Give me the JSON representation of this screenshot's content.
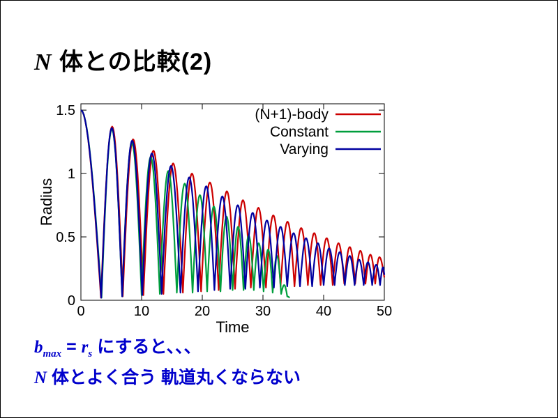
{
  "title": {
    "math": "N",
    "rest": " 体との比較(2)"
  },
  "chart_data": {
    "type": "line",
    "title": "",
    "xlabel": "Time",
    "ylabel": "Radius",
    "xlim": [
      0,
      50
    ],
    "ylim": [
      0,
      1.55
    ],
    "xticks": [
      0,
      10,
      20,
      30,
      40,
      50
    ],
    "yticks": [
      0,
      0.5,
      1,
      1.5
    ],
    "grid": false,
    "legend_position": "top-right-inside",
    "series": [
      {
        "name": "(N+1)-body",
        "color": "#cc0000",
        "extrema": [
          [
            0,
            1.5
          ],
          [
            3.3,
            0.02
          ],
          [
            5.15,
            1.37
          ],
          [
            6.9,
            0.03
          ],
          [
            8.6,
            1.27
          ],
          [
            10.3,
            0.04
          ],
          [
            11.95,
            1.18
          ],
          [
            13.6,
            0.05
          ],
          [
            15.2,
            1.08
          ],
          [
            16.8,
            0.06
          ],
          [
            18.3,
            1.0
          ],
          [
            19.8,
            0.07
          ],
          [
            21.25,
            0.93
          ],
          [
            22.7,
            0.08
          ],
          [
            24.05,
            0.86
          ],
          [
            25.4,
            0.09
          ],
          [
            26.7,
            0.79
          ],
          [
            28.0,
            0.1
          ],
          [
            29.25,
            0.73
          ],
          [
            30.5,
            0.1
          ],
          [
            31.7,
            0.67
          ],
          [
            32.9,
            0.11
          ],
          [
            34.05,
            0.62
          ],
          [
            35.2,
            0.11
          ],
          [
            36.3,
            0.57
          ],
          [
            37.4,
            0.12
          ],
          [
            38.45,
            0.53
          ],
          [
            39.5,
            0.12
          ],
          [
            40.5,
            0.49
          ],
          [
            41.5,
            0.12
          ],
          [
            42.45,
            0.45
          ],
          [
            43.4,
            0.13
          ],
          [
            44.3,
            0.42
          ],
          [
            45.2,
            0.13
          ],
          [
            46.05,
            0.39
          ],
          [
            46.9,
            0.13
          ],
          [
            47.7,
            0.36
          ],
          [
            48.5,
            0.13
          ],
          [
            49.2,
            0.34
          ],
          [
            50,
            0.18
          ]
        ]
      },
      {
        "name": "Constant",
        "color": "#009e3c",
        "extrema": [
          [
            0,
            1.5
          ],
          [
            3.4,
            0.02
          ],
          [
            5.1,
            1.35
          ],
          [
            6.8,
            0.03
          ],
          [
            8.4,
            1.24
          ],
          [
            10.0,
            0.04
          ],
          [
            11.5,
            1.13
          ],
          [
            13.0,
            0.05
          ],
          [
            14.4,
            1.02
          ],
          [
            15.8,
            0.06
          ],
          [
            17.1,
            0.92
          ],
          [
            18.4,
            0.06
          ],
          [
            19.6,
            0.83
          ],
          [
            20.8,
            0.07
          ],
          [
            21.9,
            0.74
          ],
          [
            23.0,
            0.07
          ],
          [
            24.0,
            0.66
          ],
          [
            25.0,
            0.08
          ],
          [
            25.9,
            0.58
          ],
          [
            26.8,
            0.08
          ],
          [
            27.65,
            0.51
          ],
          [
            28.5,
            0.08
          ],
          [
            29.3,
            0.45
          ],
          [
            30.1,
            0.07
          ],
          [
            30.85,
            0.4
          ],
          [
            31.6,
            0.06
          ],
          [
            32.3,
            0.35
          ],
          [
            33.0,
            0.05
          ],
          [
            33.5,
            0.12
          ],
          [
            34.0,
            0.03
          ],
          [
            34.4,
            0.02
          ]
        ]
      },
      {
        "name": "Varying",
        "color": "#0000a0",
        "extrema": [
          [
            0,
            1.5
          ],
          [
            3.35,
            0.02
          ],
          [
            5.1,
            1.36
          ],
          [
            6.8,
            0.03
          ],
          [
            8.45,
            1.26
          ],
          [
            10.1,
            0.04
          ],
          [
            11.7,
            1.16
          ],
          [
            13.3,
            0.05
          ],
          [
            14.85,
            1.06
          ],
          [
            16.4,
            0.06
          ],
          [
            17.85,
            0.97
          ],
          [
            19.3,
            0.07
          ],
          [
            20.65,
            0.9
          ],
          [
            22.0,
            0.08
          ],
          [
            23.3,
            0.82
          ],
          [
            24.6,
            0.09
          ],
          [
            25.85,
            0.75
          ],
          [
            27.1,
            0.09
          ],
          [
            28.3,
            0.69
          ],
          [
            29.5,
            0.1
          ],
          [
            30.65,
            0.63
          ],
          [
            31.8,
            0.1
          ],
          [
            32.9,
            0.58
          ],
          [
            34.0,
            0.11
          ],
          [
            35.05,
            0.53
          ],
          [
            36.1,
            0.11
          ],
          [
            37.1,
            0.49
          ],
          [
            38.1,
            0.11
          ],
          [
            39.05,
            0.45
          ],
          [
            40.0,
            0.12
          ],
          [
            40.9,
            0.41
          ],
          [
            41.8,
            0.12
          ],
          [
            42.65,
            0.38
          ],
          [
            43.5,
            0.12
          ],
          [
            44.3,
            0.35
          ],
          [
            45.1,
            0.12
          ],
          [
            45.85,
            0.32
          ],
          [
            46.6,
            0.12
          ],
          [
            47.3,
            0.3
          ],
          [
            48.0,
            0.12
          ],
          [
            48.65,
            0.28
          ],
          [
            49.3,
            0.12
          ],
          [
            49.8,
            0.26
          ],
          [
            50,
            0.2
          ]
        ]
      }
    ]
  },
  "notes": {
    "l1_b": "b",
    "l1_bsub": "max",
    "l1_eq": " = ",
    "l1_r": "r",
    "l1_rsub": "s",
    "l1_rest": " にすると、、、",
    "l2_math": "N",
    "l2_rest": " 体とよく合う 軌道丸くならない"
  }
}
